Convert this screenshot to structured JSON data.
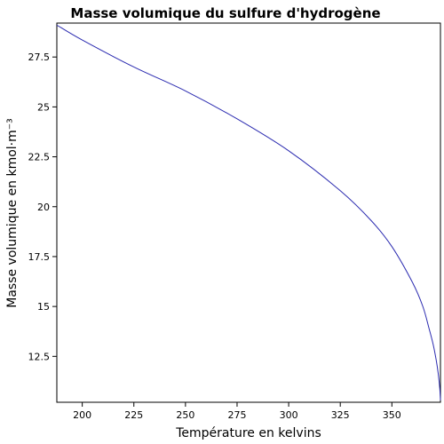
{
  "chart_data": {
    "type": "line",
    "title": "Masse volumique du sulfure d'hydrogène",
    "xlabel": "Température en kelvins",
    "ylabel": "Masse volumique en kmol·m⁻³",
    "xlim": [
      187.68,
      373.53
    ],
    "ylim": [
      10.2,
      29.2
    ],
    "xticks": [
      200,
      225,
      250,
      275,
      300,
      325,
      350
    ],
    "yticks": [
      12.5,
      15,
      17.5,
      20,
      22.5,
      25,
      27.5
    ],
    "grid": false,
    "colors": {
      "line": "#2b2bb0"
    },
    "series": [
      {
        "x": [
          187.68,
          200,
          225,
          250,
          275,
          300,
          325,
          340,
          350,
          360,
          365,
          368,
          370,
          371.5,
          372.5,
          373.2,
          373.53
        ],
        "y": [
          29.1,
          28.35,
          27.0,
          25.8,
          24.4,
          22.8,
          20.8,
          19.3,
          18.0,
          16.2,
          15.0,
          13.9,
          13.1,
          12.3,
          11.6,
          10.9,
          10.3
        ]
      }
    ]
  }
}
